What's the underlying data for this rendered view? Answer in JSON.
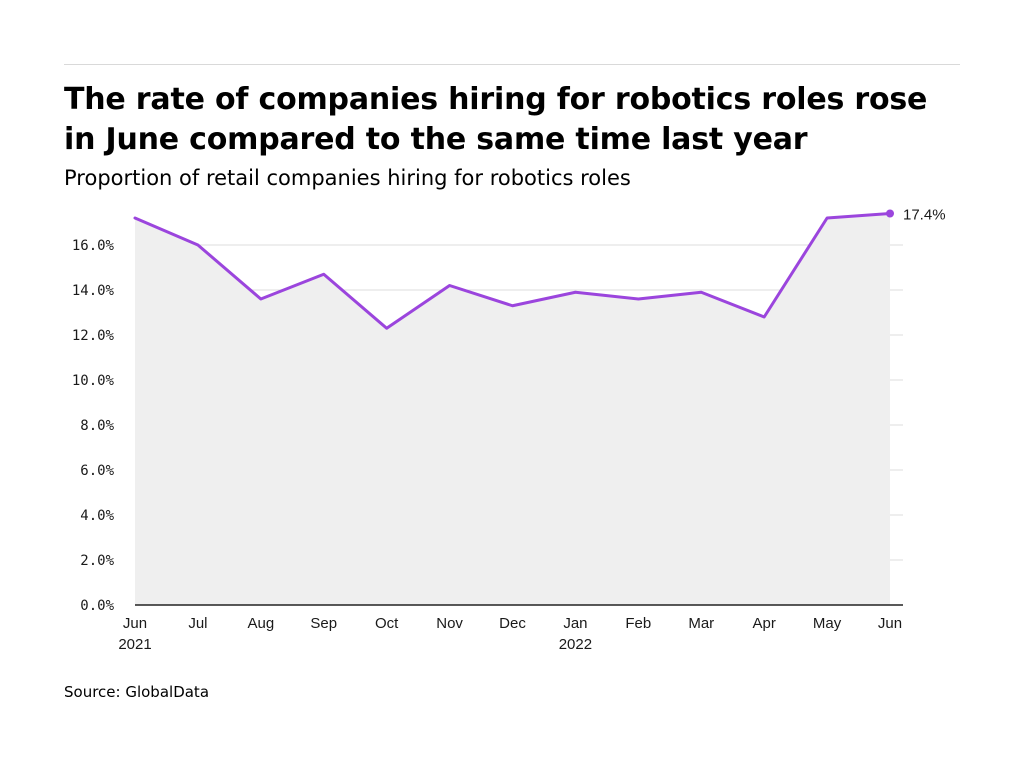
{
  "title": "The rate of companies hiring for robotics roles rose in June compared to the same time last year",
  "subtitle": "Proportion of retail companies hiring for robotics roles",
  "source": "Source: GlobalData",
  "colors": {
    "line": "#9b45dd",
    "area": "#efefef",
    "grid": "#dcdcdc",
    "axis": "#222222"
  },
  "chart_data": {
    "type": "area",
    "categories": [
      "Jun",
      "Jul",
      "Aug",
      "Sep",
      "Oct",
      "Nov",
      "Dec",
      "Jan",
      "Feb",
      "Mar",
      "Apr",
      "May",
      "Jun"
    ],
    "year_labels": [
      "2021",
      "",
      "",
      "",
      "",
      "",
      "",
      "2022",
      "",
      "",
      "",
      "",
      ""
    ],
    "series": [
      {
        "values": [
          17.2,
          16.0,
          13.6,
          14.7,
          12.3,
          14.2,
          13.3,
          13.9,
          13.6,
          13.9,
          12.8,
          17.2,
          17.4
        ]
      }
    ],
    "yticks": [
      "0.0%",
      "2.0%",
      "4.0%",
      "6.0%",
      "8.0%",
      "10.0%",
      "12.0%",
      "14.0%",
      "16.0%"
    ],
    "ylim": [
      0,
      18
    ],
    "last_value_label": "17.4%",
    "grid": true
  }
}
